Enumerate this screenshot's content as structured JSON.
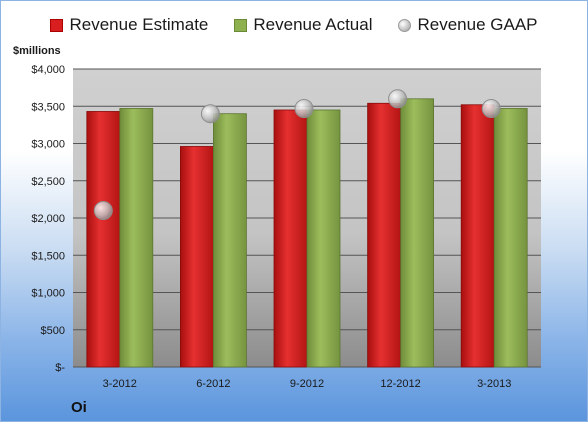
{
  "legend": {
    "estimate": "Revenue Estimate",
    "actual": "Revenue Actual",
    "gaap": "Revenue GAAP"
  },
  "unit_label": "$millions",
  "company": "Oi",
  "colors": {
    "estimate": "#d81e1e",
    "actual": "#8fb04f",
    "gaap": "#c0c0c0"
  },
  "chart_data": {
    "type": "bar",
    "categories": [
      "3-2012",
      "6-2012",
      "9-2012",
      "12-2012",
      "3-2013"
    ],
    "series": [
      {
        "name": "Revenue Estimate",
        "values": [
          3430,
          2960,
          3450,
          3540,
          3520
        ]
      },
      {
        "name": "Revenue Actual",
        "values": [
          3470,
          3400,
          3450,
          3600,
          3470
        ]
      },
      {
        "name": "Revenue GAAP",
        "type": "scatter",
        "values": [
          2100,
          3400,
          3470,
          3600,
          3470
        ]
      }
    ],
    "ylabel": "$millions",
    "ylim": [
      0,
      4000
    ],
    "yticks": [
      0,
      500,
      1000,
      1500,
      2000,
      2500,
      3000,
      3500,
      4000
    ],
    "ytick_labels": [
      "$-",
      "$500",
      "$1,000",
      "$1,500",
      "$2,000",
      "$2,500",
      "$3,000",
      "$3,500",
      "$4,000"
    ],
    "grid": true,
    "legend_position": "top"
  }
}
